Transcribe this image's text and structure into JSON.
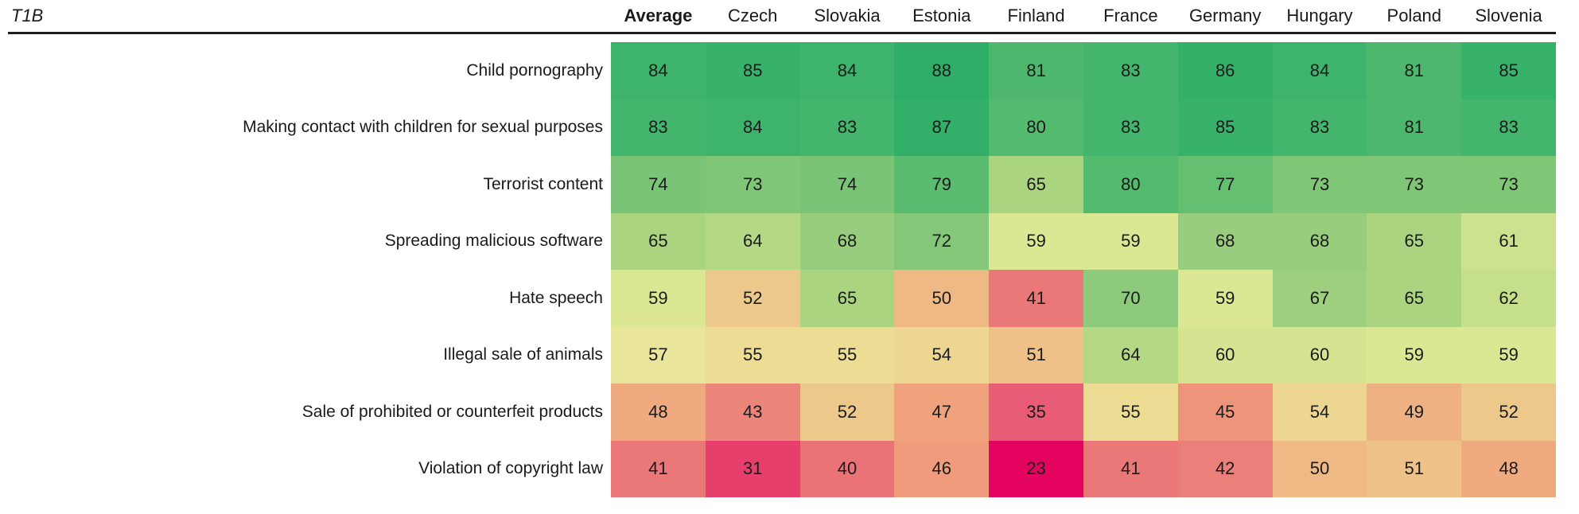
{
  "header": {
    "tag": "T1B"
  },
  "chart_data": {
    "type": "heatmap",
    "title": "",
    "columns": [
      "Average",
      "Czech",
      "Slovakia",
      "Estonia",
      "Finland",
      "France",
      "Germany",
      "Hungary",
      "Poland",
      "Slovenia"
    ],
    "bold_column_index": 0,
    "rows": [
      {
        "label": "Child pornography",
        "values": [
          84,
          85,
          84,
          88,
          81,
          83,
          86,
          84,
          81,
          85
        ]
      },
      {
        "label": "Making contact with children for sexual purposes",
        "values": [
          83,
          84,
          83,
          87,
          80,
          83,
          85,
          83,
          81,
          83
        ]
      },
      {
        "label": "Terrorist content",
        "values": [
          74,
          73,
          74,
          79,
          65,
          80,
          77,
          73,
          73,
          73
        ]
      },
      {
        "label": "Spreading malicious software",
        "values": [
          65,
          64,
          68,
          72,
          59,
          59,
          68,
          68,
          65,
          61
        ]
      },
      {
        "label": "Hate speech",
        "values": [
          59,
          52,
          65,
          50,
          41,
          70,
          59,
          67,
          65,
          62
        ]
      },
      {
        "label": "Illegal sale of animals",
        "values": [
          57,
          55,
          55,
          54,
          51,
          64,
          60,
          60,
          59,
          59
        ]
      },
      {
        "label": "Sale of prohibited or counterfeit products",
        "values": [
          48,
          43,
          52,
          47,
          35,
          55,
          45,
          54,
          49,
          52
        ]
      },
      {
        "label": "Violation of copyright law",
        "values": [
          41,
          31,
          40,
          46,
          23,
          41,
          42,
          50,
          51,
          48
        ]
      }
    ],
    "value_range": [
      23,
      88
    ],
    "color_scale": {
      "type": "diverging-pink-yellow-green",
      "stops": [
        {
          "value": 23,
          "color": "#E4035E"
        },
        {
          "value": 31,
          "color": "#E63F6C"
        },
        {
          "value": 35,
          "color": "#E85C76"
        },
        {
          "value": 41,
          "color": "#EA7878"
        },
        {
          "value": 47,
          "color": "#F0A27D"
        },
        {
          "value": 52,
          "color": "#ECC98A"
        },
        {
          "value": 55,
          "color": "#EDDC94"
        },
        {
          "value": 57,
          "color": "#E9E59A"
        },
        {
          "value": 59,
          "color": "#DCE794"
        },
        {
          "value": 62,
          "color": "#C6DF8B"
        },
        {
          "value": 65,
          "color": "#ABD481"
        },
        {
          "value": 68,
          "color": "#97CD7D"
        },
        {
          "value": 73,
          "color": "#7FC677"
        },
        {
          "value": 77,
          "color": "#65BF71"
        },
        {
          "value": 81,
          "color": "#4DB86D"
        },
        {
          "value": 85,
          "color": "#38B16A"
        },
        {
          "value": 88,
          "color": "#2FAE67"
        }
      ]
    },
    "layout": {
      "legend_position": "none",
      "grid": false,
      "value_labels": true
    }
  }
}
